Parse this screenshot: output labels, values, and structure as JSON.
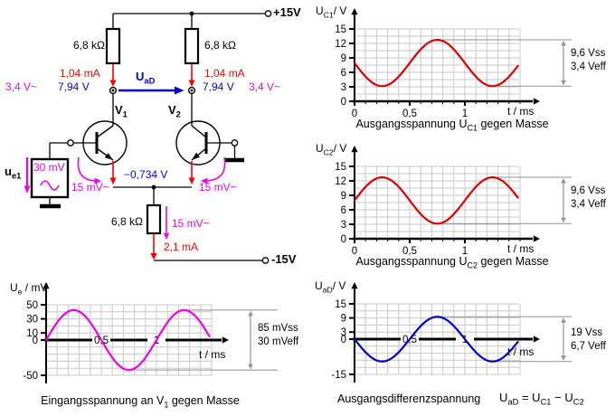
{
  "circuit": {
    "supply_pos": "+15V",
    "supply_neg": "-15V",
    "r_left": "6,8 kΩ",
    "r_right": "6,8 kΩ",
    "r_emitter": "6,8 kΩ",
    "i_left": "1,04 mA",
    "i_right": "1,04 mA",
    "i_emitter": "2,1 mA",
    "v_left_ac": "3,4 V~",
    "v_left_dc": "7,94 V",
    "v_right_dc": "7,94 V",
    "v_right_ac": "3,4 V~",
    "v_emitter_node": "−0,734 V",
    "vbe_left": "15 mV~",
    "vbe_right": "15 mV~",
    "v_re_ac": "15 mV~",
    "source_value": "30 mV",
    "source_label_segments": [
      {
        "t": "u"
      },
      {
        "t": "e1",
        "sub": true
      }
    ],
    "uad_label_segments": [
      {
        "t": "U"
      },
      {
        "t": "aD",
        "sub": true
      }
    ],
    "v1_label_segments": [
      {
        "t": "V"
      },
      {
        "t": "1",
        "sub": true
      }
    ],
    "v2_label_segments": [
      {
        "t": "V"
      },
      {
        "t": "2",
        "sub": true
      }
    ]
  },
  "chart_data": [
    {
      "id": "uc1",
      "type": "line",
      "title_segments": [
        {
          "t": "Ausgangsspannung U"
        },
        {
          "t": "C1",
          "sub": true
        },
        {
          "t": " gegen Masse"
        }
      ],
      "ylabel_segments": [
        {
          "t": "U"
        },
        {
          "t": "C1",
          "sub": true
        },
        {
          "t": "/ V"
        }
      ],
      "xlabel": "t / ms",
      "x_tick_position": "below",
      "x_ticks": [
        {
          "v": 0,
          "label": "0"
        },
        {
          "v": 0.5,
          "label": "0,5"
        },
        {
          "v": 1,
          "label": "1"
        }
      ],
      "y_ticks": [
        {
          "v": 0,
          "label": "0"
        },
        {
          "v": 3,
          "label": "3"
        },
        {
          "v": 6,
          "label": "6"
        },
        {
          "v": 9,
          "label": "9"
        },
        {
          "v": 12,
          "label": "12"
        },
        {
          "v": 15,
          "label": "15"
        }
      ],
      "x_max": 1.5,
      "x_grid_step": 0.1,
      "y_min": 0,
      "y_max": 15,
      "y_grid_step": 1.5,
      "wave": {
        "shape": "sine",
        "color": "#dd0000",
        "offset_v": 7.94,
        "amplitude_v": -4.8,
        "period_ms": 1,
        "t_end_ms": 1.48
      },
      "annotation": {
        "vss": "9,6 Vss",
        "veff": "3,4 Veff"
      }
    },
    {
      "id": "uc2",
      "type": "line",
      "title_segments": [
        {
          "t": "Ausgangsspannung U"
        },
        {
          "t": "C2",
          "sub": true
        },
        {
          "t": " gegen Masse"
        }
      ],
      "ylabel_segments": [
        {
          "t": "U"
        },
        {
          "t": "C2",
          "sub": true
        },
        {
          "t": "/ V"
        }
      ],
      "xlabel": "t / ms",
      "x_tick_position": "below",
      "x_ticks": [
        {
          "v": 0,
          "label": "0"
        },
        {
          "v": 0.5,
          "label": "0,5"
        },
        {
          "v": 1,
          "label": "1"
        }
      ],
      "y_ticks": [
        {
          "v": 0,
          "label": "0"
        },
        {
          "v": 3,
          "label": "3"
        },
        {
          "v": 6,
          "label": "6"
        },
        {
          "v": 9,
          "label": "9"
        },
        {
          "v": 12,
          "label": "12"
        },
        {
          "v": 15,
          "label": "15"
        }
      ],
      "x_max": 1.5,
      "x_grid_step": 0.1,
      "y_min": 0,
      "y_max": 15,
      "y_grid_step": 1.5,
      "wave": {
        "shape": "sine",
        "color": "#dd0000",
        "offset_v": 7.94,
        "amplitude_v": 4.8,
        "period_ms": 1,
        "t_end_ms": 1.48
      },
      "annotation": {
        "vss": "9,6 Vss",
        "veff": "3,4 Veff"
      }
    },
    {
      "id": "uad",
      "type": "line",
      "title_segments": [
        {
          "t": "Ausgangsdifferenzspannung"
        }
      ],
      "formula_segments": [
        {
          "t": "U"
        },
        {
          "t": "aD",
          "sub": true
        },
        {
          "t": " = U"
        },
        {
          "t": "C1",
          "sub": true
        },
        {
          "t": " − U"
        },
        {
          "t": "C2",
          "sub": true
        }
      ],
      "ylabel_segments": [
        {
          "t": "U"
        },
        {
          "t": "aD",
          "sub": true
        },
        {
          "t": "/ V"
        }
      ],
      "xlabel": "t / ms",
      "x_tick_position": "on_axis",
      "x_ticks": [
        {
          "v": 0.5,
          "label": "0,5"
        },
        {
          "v": 1,
          "label": "1"
        }
      ],
      "y_ticks": [
        {
          "v": 15,
          "label": "15"
        },
        {
          "v": 9,
          "label": "9"
        },
        {
          "v": 3,
          "label": "3"
        },
        {
          "v": 0,
          "label": "0"
        },
        {
          "v": -15,
          "label": "-15"
        }
      ],
      "x_max": 1.5,
      "x_grid_step": 0.1,
      "y_min": -15,
      "y_max": 15,
      "y_grid_step": 3,
      "wave": {
        "shape": "sine",
        "color": "#0000cc",
        "offset_v": 0,
        "amplitude_v": -9.5,
        "period_ms": 1,
        "t_end_ms": 1.48
      },
      "annotation": {
        "vss": "19 Vss",
        "veff": "6,7 Veff"
      }
    },
    {
      "id": "ue",
      "type": "line",
      "title_segments": [
        {
          "t": "Eingangsspannung an V"
        },
        {
          "t": "1",
          "sub": true
        },
        {
          "t": " gegen Masse"
        }
      ],
      "ylabel_segments": [
        {
          "t": "U"
        },
        {
          "t": "e",
          "sub": true
        },
        {
          "t": " / mV"
        }
      ],
      "xlabel": "t / ms",
      "x_tick_position": "on_axis",
      "x_ticks": [
        {
          "v": 0.5,
          "label": "0,5"
        },
        {
          "v": 1,
          "label": "1"
        }
      ],
      "y_ticks": [
        {
          "v": 50,
          "label": "50"
        },
        {
          "v": 30,
          "label": "30"
        },
        {
          "v": 10,
          "label": "10"
        },
        {
          "v": 0,
          "label": "0"
        },
        {
          "v": -50,
          "label": "-50"
        }
      ],
      "x_max": 1.5,
      "x_grid_step": 0.1,
      "y_min": -50,
      "y_max": 50,
      "y_grid_step": 10,
      "wave": {
        "shape": "sine",
        "color": "#ee00ee",
        "offset_v": 0,
        "amplitude_v": 42.5,
        "period_ms": 1,
        "t_end_ms": 1.48
      },
      "annotation": {
        "vss": "85 mVss",
        "veff": "30 mVeff"
      }
    }
  ]
}
